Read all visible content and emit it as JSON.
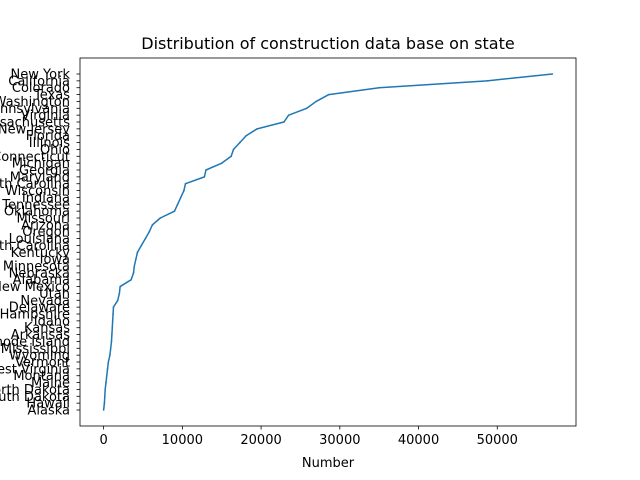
{
  "chart_data": {
    "type": "line",
    "title": "Distribution of construction data base on state",
    "xlabel": "Number",
    "ylabel": "",
    "xlim": [
      -3000,
      60000
    ],
    "x_ticks": [
      0,
      10000,
      20000,
      30000,
      40000,
      50000
    ],
    "grid": false,
    "color": "#1f77b4",
    "categories": [
      "Alaska",
      "Hawaii",
      "South Dakota",
      "North Dakota",
      "Maine",
      "Montana",
      "West Virginia",
      "Vermont",
      "Wyoming",
      "Mississippi",
      "Rhode Island",
      "Arkansas",
      "Kansas",
      "Idaho",
      "New Hampshire",
      "Delaware",
      "Nevada",
      "Utah",
      "New Mexico",
      "Alabama",
      "Nebraska",
      "Minnesota",
      "Iowa",
      "Kentucky",
      "South Carolina",
      "Louisiana",
      "Oregon",
      "Arizona",
      "Missouri",
      "Oklahoma",
      "Tennessee",
      "Indiana",
      "Wisconsin",
      "North Carolina",
      "Maryland",
      "Georgia",
      "Michigan",
      "Connecticut",
      "Ohio",
      "Illinois",
      "Florida",
      "New Jersey",
      "Massachusetts",
      "Virginia",
      "Pennsylvania",
      "Washington",
      "Texas",
      "Colorado",
      "California",
      "New York"
    ],
    "series": [
      {
        "values": [
          0,
          100,
          150,
          200,
          300,
          400,
          500,
          600,
          800,
          900,
          1000,
          1050,
          1100,
          1150,
          1200,
          1250,
          1800,
          2000,
          2100,
          3500,
          3800,
          3900,
          4100,
          4300,
          4800,
          5300,
          5800,
          6200,
          7200,
          9000,
          9400,
          9800,
          10200,
          10400,
          12800,
          13000,
          15000,
          16200,
          16500,
          17300,
          18100,
          19500,
          22900,
          23500,
          25800,
          27000,
          28600,
          35000,
          48700,
          57000
        ]
      }
    ]
  }
}
